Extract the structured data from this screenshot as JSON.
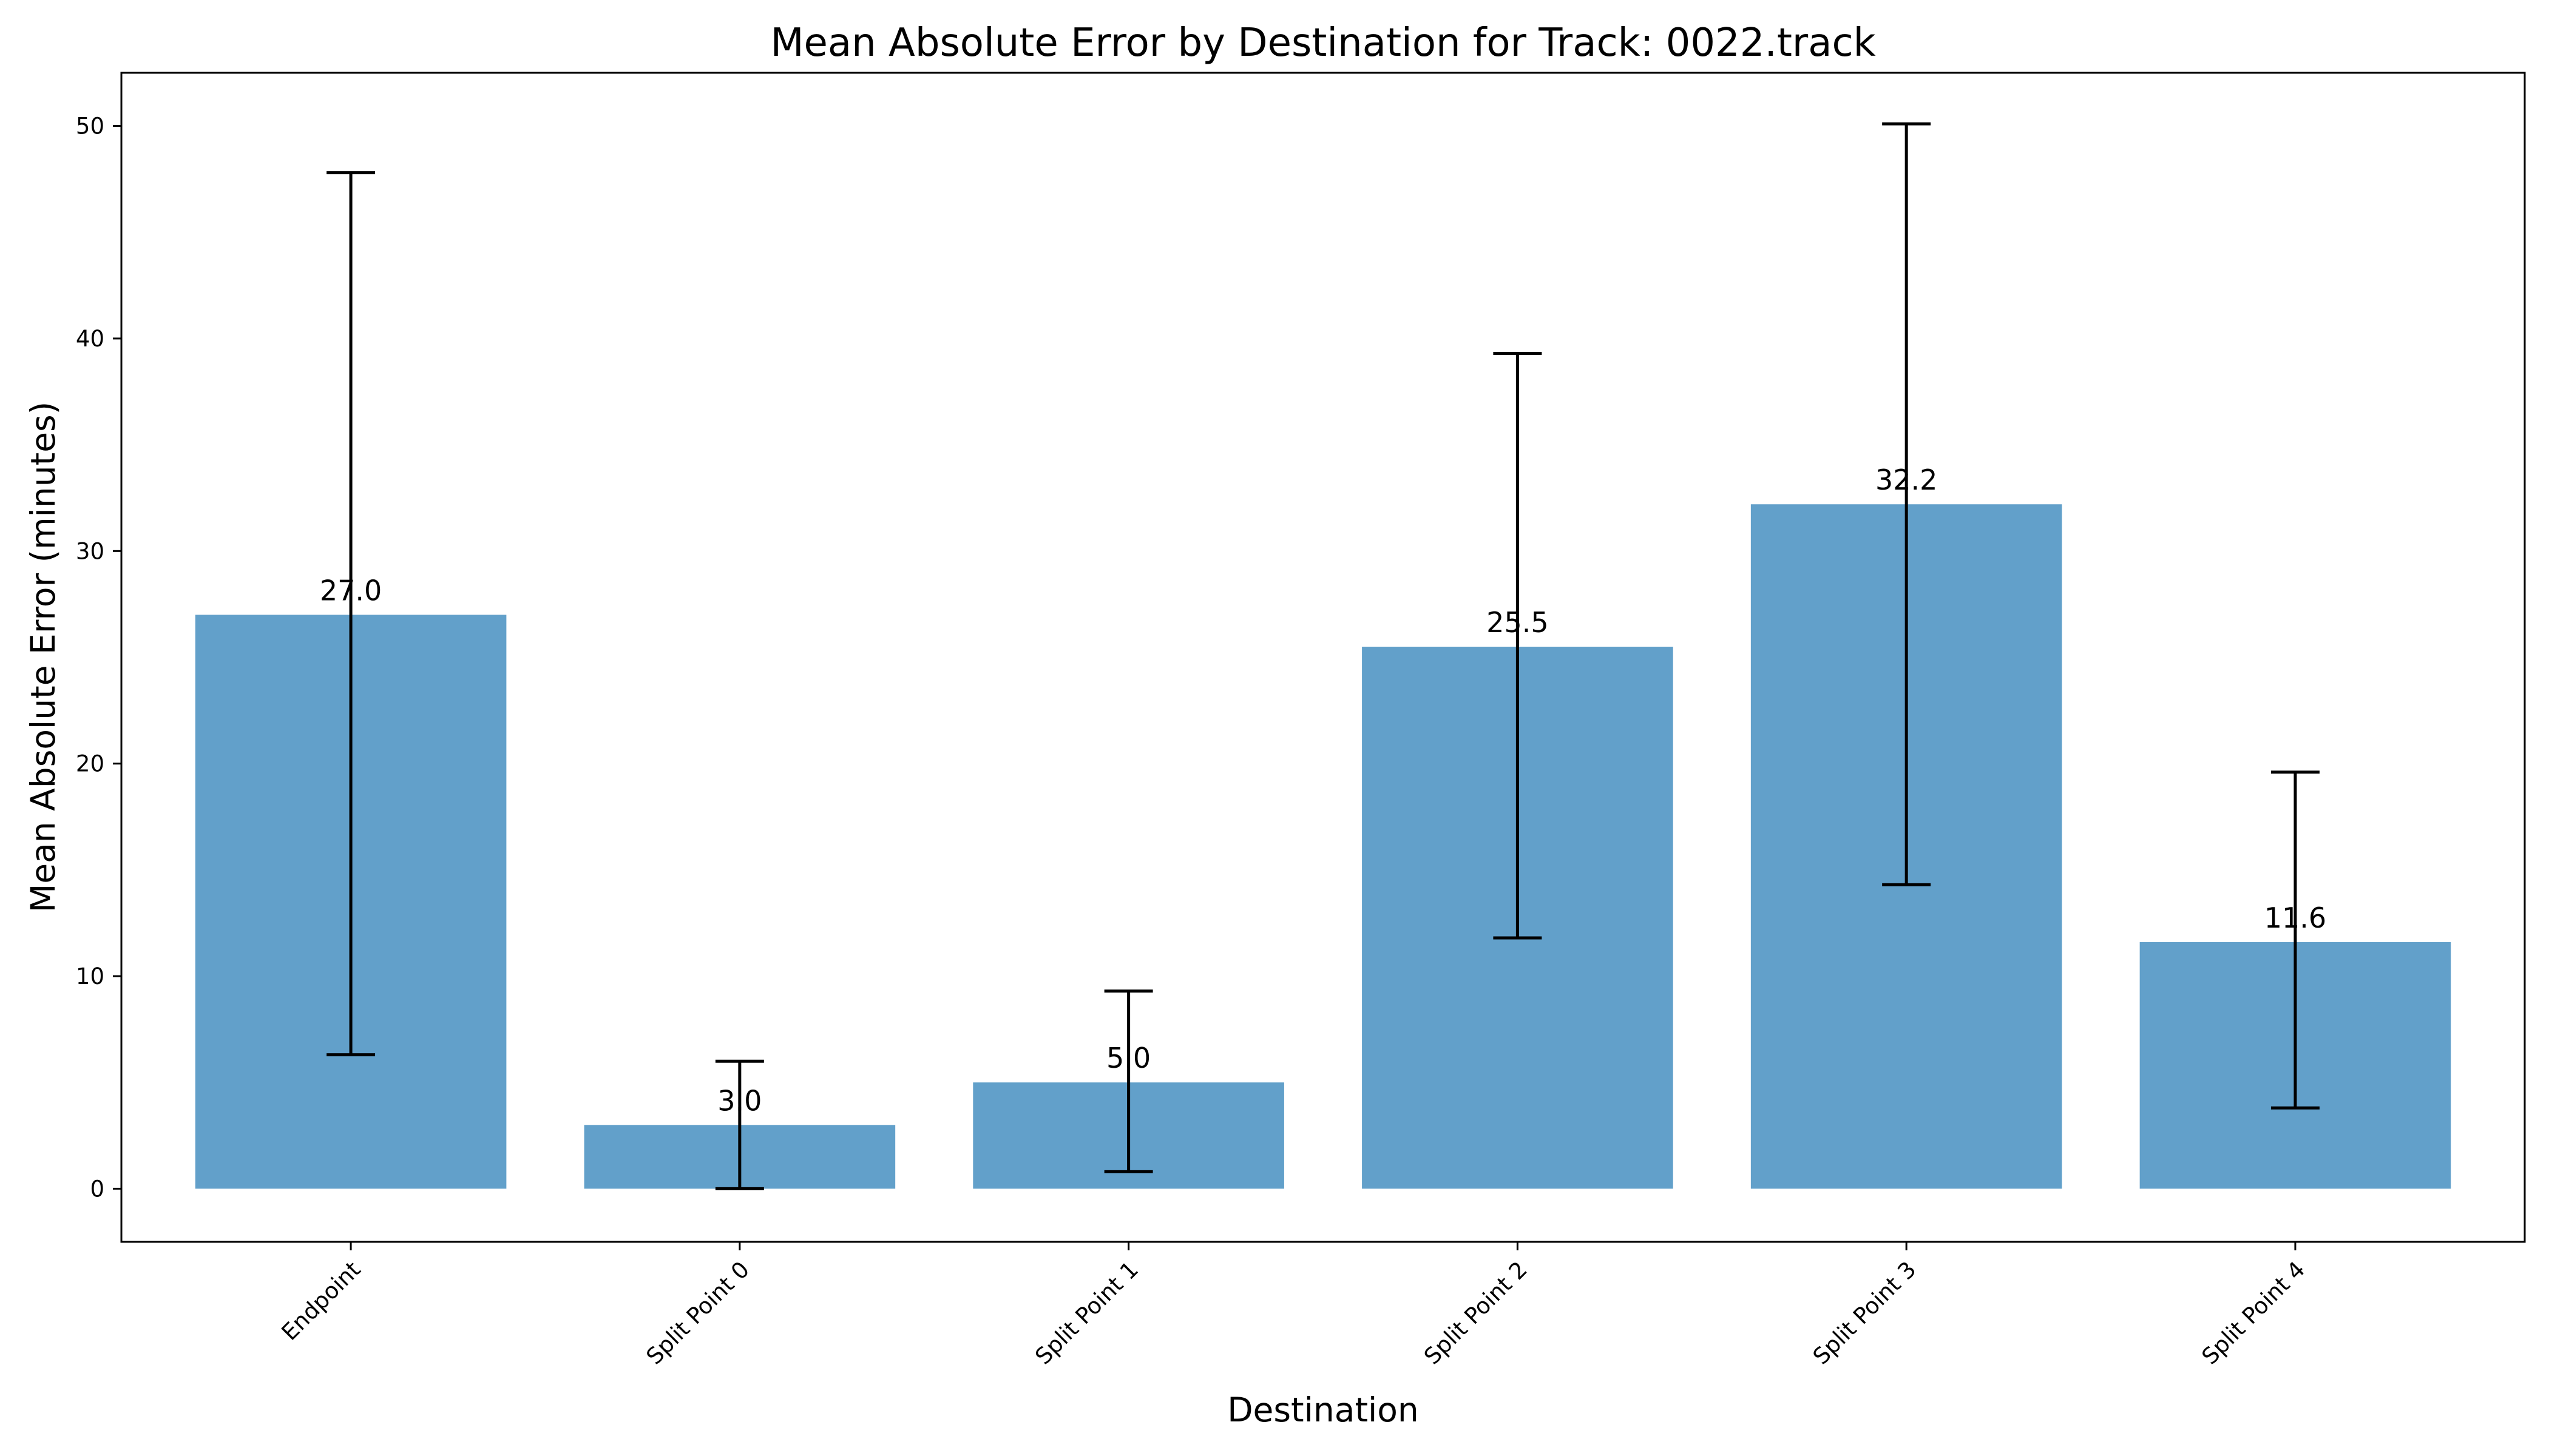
{
  "chart_data": {
    "type": "bar",
    "title": "Mean Absolute Error by Destination for Track: 0022.track",
    "xlabel": "Destination",
    "ylabel": "Mean Absolute Error (minutes)",
    "categories": [
      "Endpoint",
      "Split Point 0",
      "Split Point 1",
      "Split Point 2",
      "Split Point 3",
      "Split Point 4"
    ],
    "values": [
      27.0,
      3.0,
      5.0,
      25.5,
      32.2,
      11.6
    ],
    "value_labels": [
      "27.0",
      "3.0",
      "5.0",
      "25.5",
      "32.2",
      "11.6"
    ],
    "error_low": [
      6.3,
      0.0,
      0.8,
      11.8,
      14.3,
      3.8
    ],
    "error_high": [
      47.8,
      6.0,
      9.3,
      39.3,
      50.1,
      19.6
    ],
    "ylim": [
      -2.5,
      52.5
    ],
    "yticks": [
      0,
      10,
      20,
      30,
      40,
      50
    ],
    "grid": false,
    "bar_color": "#1f77b4",
    "bar_opacity": 0.7,
    "error_color": "#000000"
  }
}
